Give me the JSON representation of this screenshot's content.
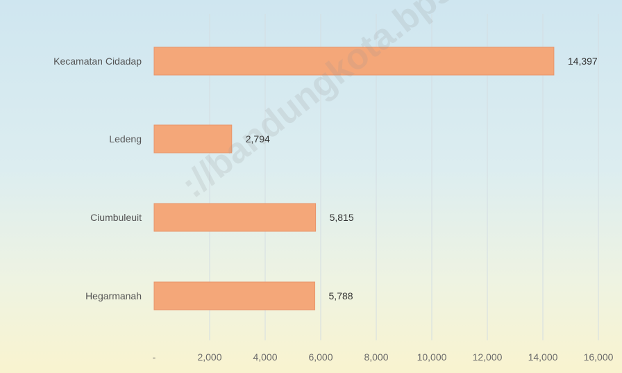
{
  "chart_data": {
    "type": "bar",
    "orientation": "horizontal",
    "categories": [
      "Kecamatan Cidadap",
      "Ledeng",
      "Ciumbuleuit",
      "Hegarmanah"
    ],
    "values": [
      14397,
      2794,
      5815,
      5788
    ],
    "value_labels": [
      "14,397",
      "2,794",
      "5,815",
      "5,788"
    ],
    "xlim": [
      0,
      16000
    ],
    "x_ticks": [
      0,
      2000,
      4000,
      6000,
      8000,
      10000,
      12000,
      14000,
      16000
    ],
    "x_tick_labels": [
      "-",
      "2,000",
      "4,000",
      "6,000",
      "8,000",
      "10,000",
      "12,000",
      "14,000",
      "16,000"
    ],
    "title": "",
    "xlabel": "",
    "ylabel": "",
    "grid": true,
    "legend": "none",
    "bar_color": "#f4a779",
    "bar_border_color": "#e8956a"
  },
  "watermark": "://bandungkota.bps.go.id"
}
